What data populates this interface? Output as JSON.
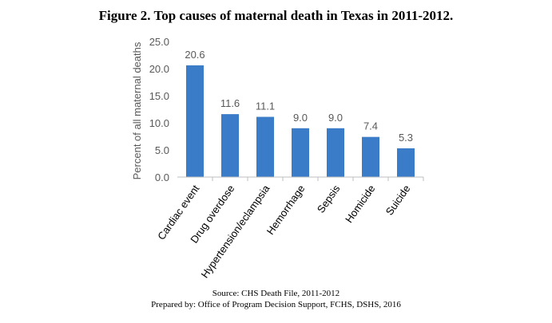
{
  "chart_data": {
    "type": "bar",
    "title": "Figure 2. Top causes of maternal death in Texas in 2011-2012.",
    "ylabel": "Percent of all maternal deaths",
    "xlabel": "",
    "ylim": [
      0,
      25
    ],
    "yticks": [
      "0.0",
      "5.0",
      "10.0",
      "15.0",
      "20.0",
      "25.0"
    ],
    "categories": [
      "Cardiac event",
      "Drug overdose",
      "Hypertension/eclampsia",
      "Hemorrhage",
      "Sepsis",
      "Homicide",
      "Suicide"
    ],
    "values": [
      20.6,
      11.6,
      11.1,
      9.0,
      9.0,
      7.4,
      5.3
    ],
    "value_labels": [
      "20.6",
      "11.6",
      "11.1",
      "9.0",
      "9.0",
      "7.4",
      "5.3"
    ],
    "bar_color": "#3A7CC7",
    "grid": false
  },
  "footer": {
    "source": "Source: CHS Death File, 2011-2012",
    "prepared": "Prepared by: Office of Program Decision Support, FCHS, DSHS, 2016"
  }
}
